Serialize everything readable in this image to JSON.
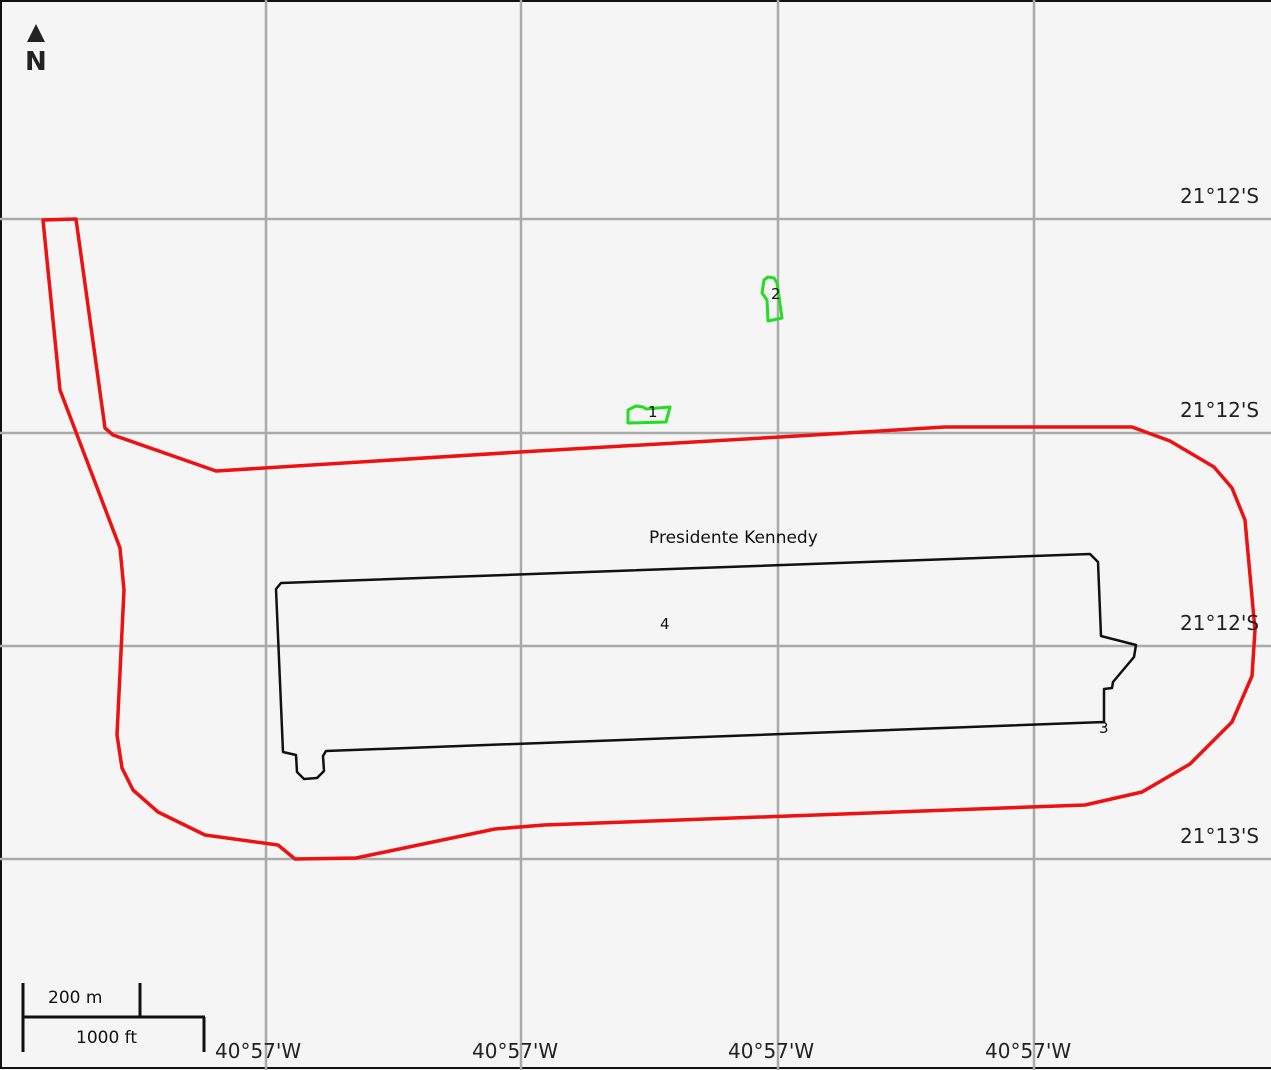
{
  "map": {
    "north_label": "N",
    "place_label": "Presidente Kennedy",
    "latitude_labels": [
      "21°12'S",
      "21°12'S",
      "21°12'S",
      "21°13'S"
    ],
    "longitude_labels": [
      "40°57'W",
      "40°57'W",
      "40°57'W",
      "40°57'W"
    ],
    "polygon_labels": [
      "1",
      "2",
      "3",
      "4"
    ],
    "scale": {
      "metric_label": "200 m",
      "imperial_label": "1000 ft"
    },
    "colors": {
      "background": "#f5f5f5",
      "grid": "#aaaaaa",
      "boundary_red": "#ee1111",
      "feature_green": "#22dd22",
      "outline_black": "#111111"
    }
  }
}
